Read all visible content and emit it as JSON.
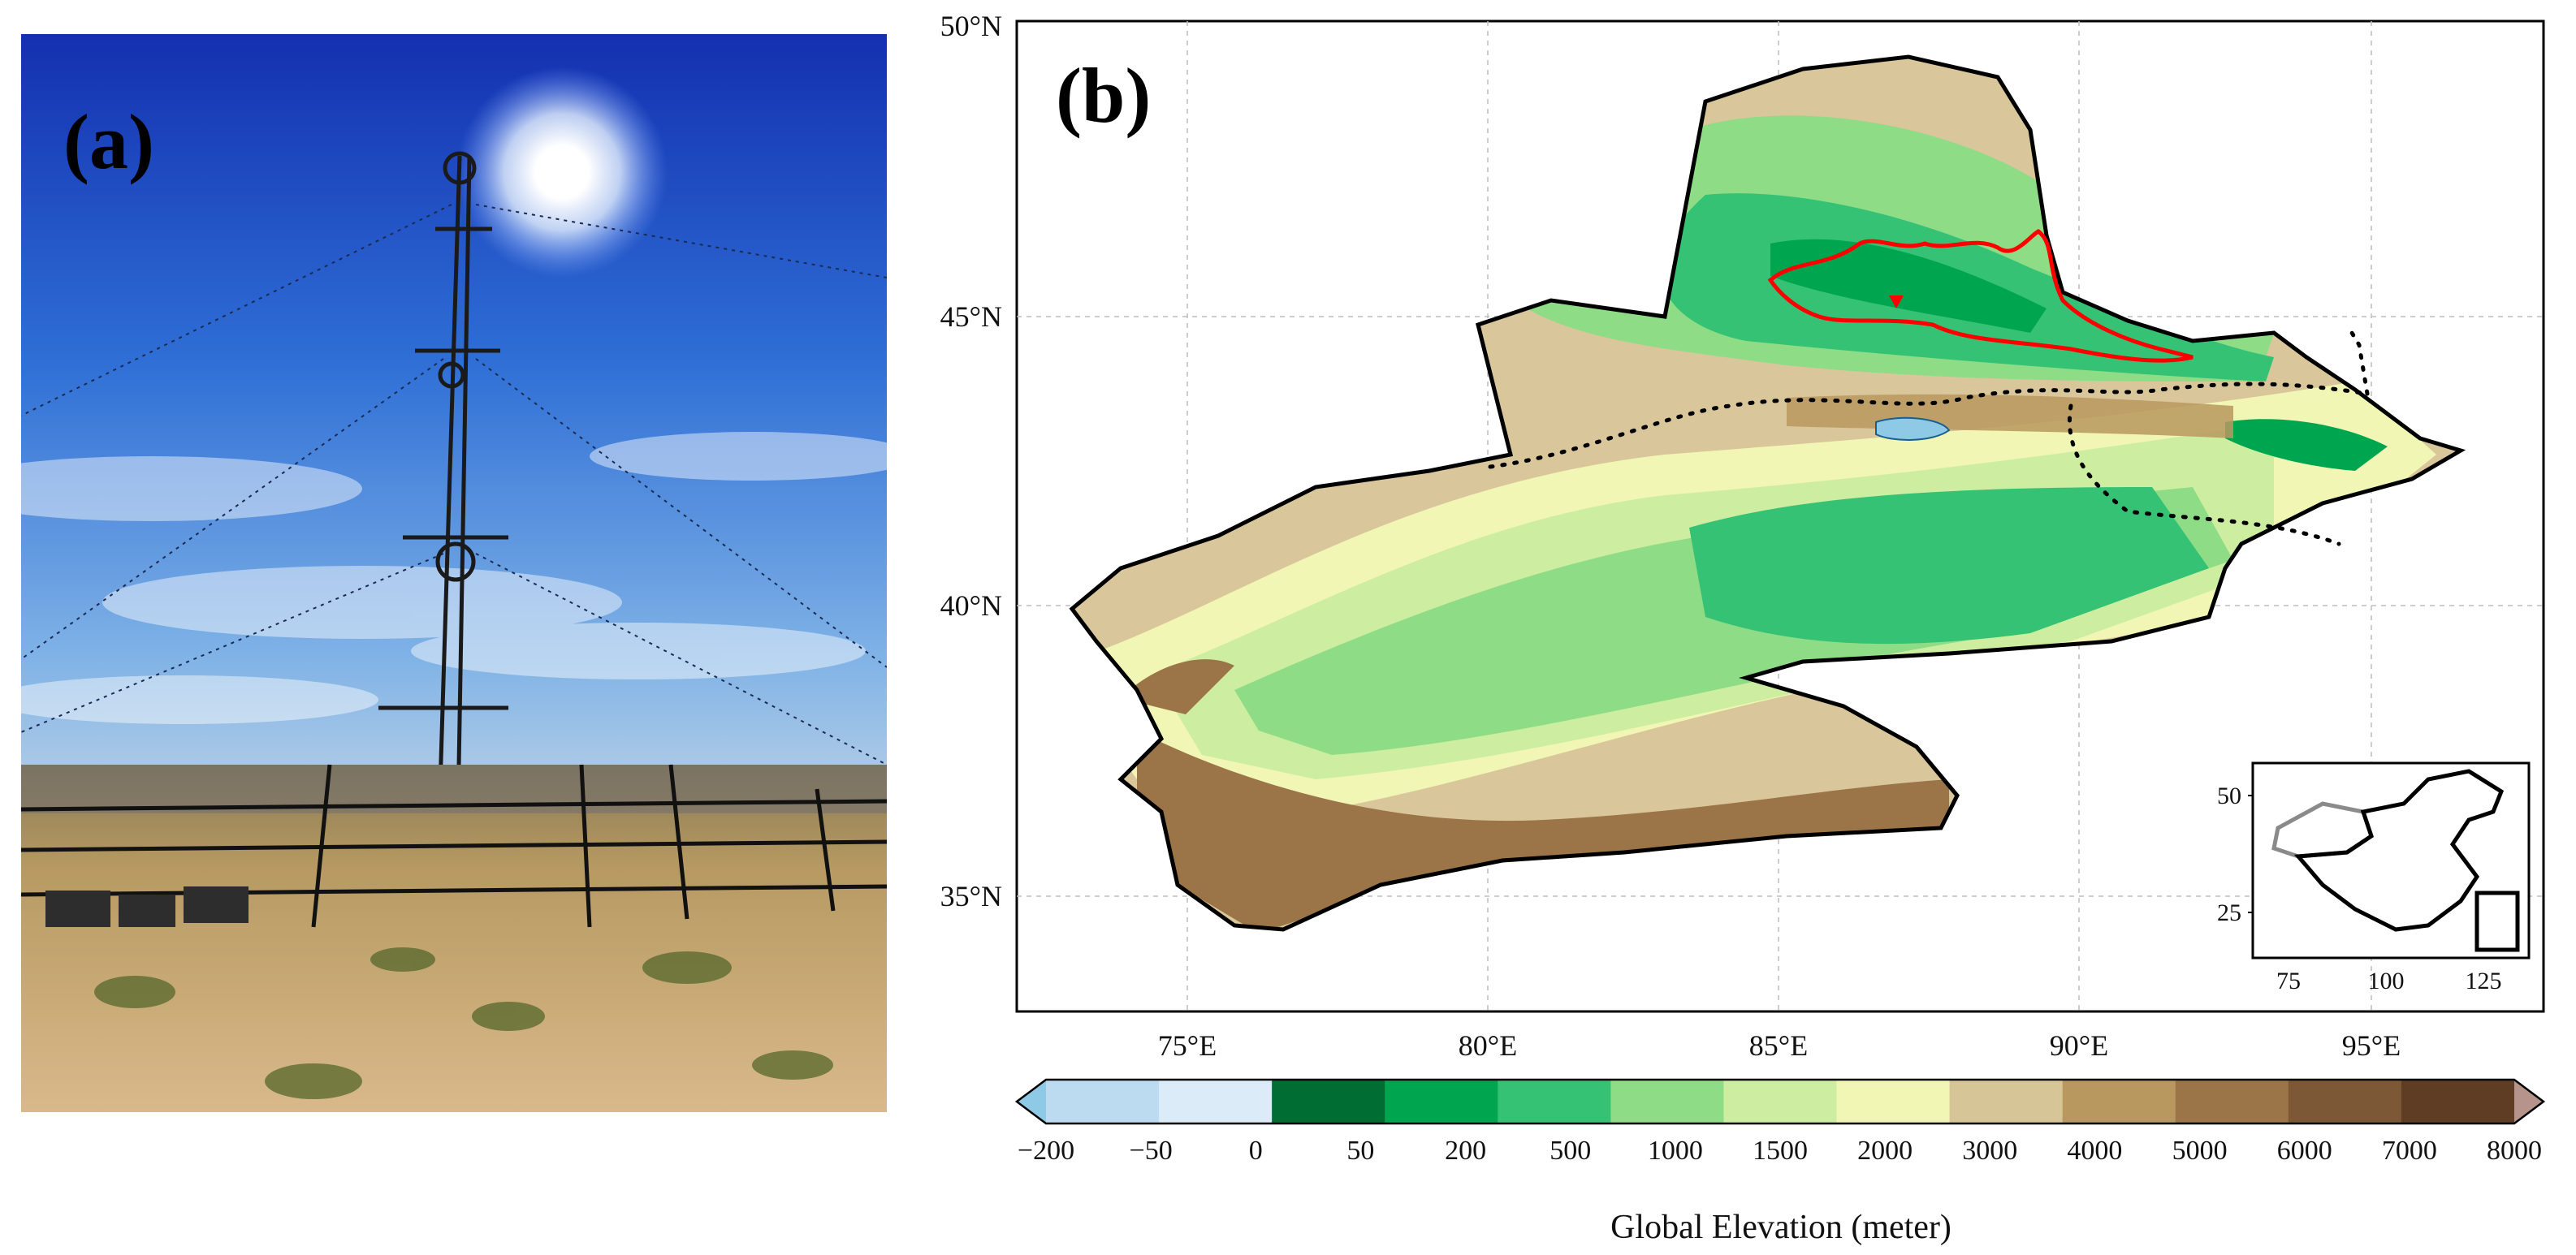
{
  "panel_a": {
    "tag": "(a)"
  },
  "panel_b": {
    "tag": "(b)",
    "lat_labels": [
      "50°N",
      "45°N",
      "40°N",
      "35°N"
    ],
    "lon_labels": [
      "75°E",
      "80°E",
      "85°E",
      "90°E",
      "95°E"
    ],
    "colorbar": {
      "title": "Global Elevation (meter)",
      "ticks": [
        "−200",
        "−50",
        "0",
        "50",
        "200",
        "500",
        "1000",
        "1500",
        "2000",
        "3000",
        "4000",
        "5000",
        "6000",
        "7000",
        "8000"
      ],
      "colors": [
        "#8ecae6",
        "#bcdaf0",
        "#dcebf8",
        "#006d32",
        "#00a54f",
        "#35c274",
        "#8fdc87",
        "#cdeea0",
        "#f2f6b4",
        "#d6c596",
        "#b9985f",
        "#9b7447",
        "#7d5836",
        "#5e3d24",
        "#b6938b"
      ]
    },
    "inset": {
      "lon_ticks": [
        "75",
        "100",
        "125"
      ],
      "lat_ticks": [
        "50",
        "25"
      ]
    }
  }
}
